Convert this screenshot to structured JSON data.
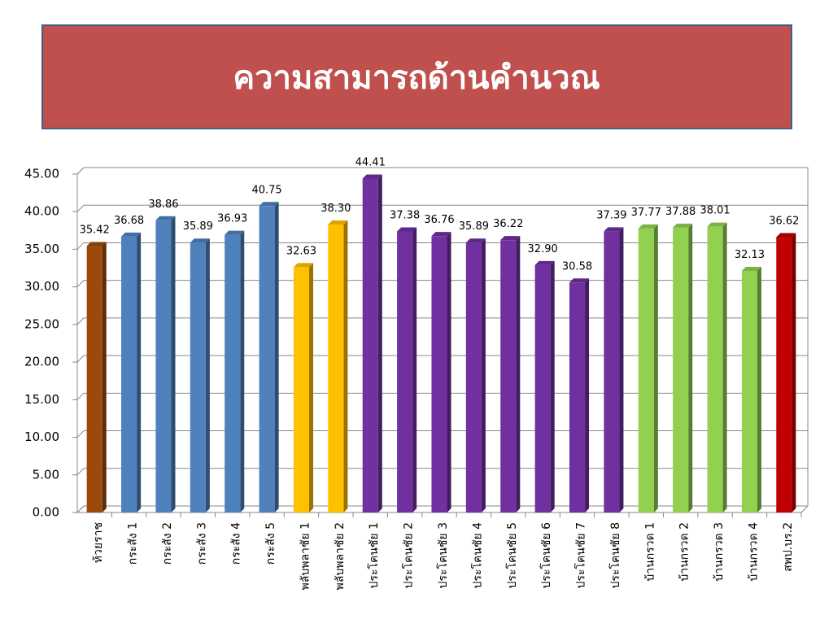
{
  "chart_data": {
    "type": "bar",
    "title": "ความสามารถด้านคำนวณ",
    "categories": [
      "ห้วยราช",
      "กระสัง 1",
      "กระสัง 2",
      "กระสัง 3",
      "กระสัง 4",
      "กระสัง 5",
      "พลับพลาชัย 1",
      "พลับพลาชัย 2",
      "ประโคนชัย 1",
      "ประโคนชัย 2",
      "ประโคนชัย 3",
      "ประโคนชัย 4",
      "ประโคนชัย 5",
      "ประโคนชัย 6",
      "ประโคนชัย 7",
      "ประโคนชัย 8",
      "บ้านกรวด 1",
      "บ้านกรวด 2",
      "บ้านกรวด 3",
      "บ้านกรวด 4",
      "สพป.บร.2"
    ],
    "values": [
      35.42,
      36.68,
      38.86,
      35.89,
      36.93,
      40.75,
      32.63,
      38.3,
      44.41,
      37.38,
      36.76,
      35.89,
      36.22,
      32.9,
      30.58,
      37.39,
      37.77,
      37.88,
      38.01,
      32.13,
      36.62
    ],
    "value_labels": [
      "35.42",
      "36.68",
      "38.86",
      "35.89",
      "36.93",
      "40.75",
      "32.63",
      "38.30",
      "44.41",
      "37.38",
      "36.76",
      "35.89",
      "36.22",
      "32.90",
      "30.58",
      "37.39",
      "37.77",
      "37.88",
      "38.01",
      "32.13",
      "36.62"
    ],
    "colors": [
      "#9c4a0b",
      "#4f81bd",
      "#4f81bd",
      "#4f81bd",
      "#4f81bd",
      "#4f81bd",
      "#ffc000",
      "#ffc000",
      "#7030a0",
      "#7030a0",
      "#7030a0",
      "#7030a0",
      "#7030a0",
      "#7030a0",
      "#7030a0",
      "#7030a0",
      "#92d050",
      "#92d050",
      "#92d050",
      "#92d050",
      "#c00000"
    ],
    "ylim": [
      0,
      45
    ],
    "yticks": [
      {
        "value": 0,
        "label": "0.00"
      },
      {
        "value": 5,
        "label": "5.00"
      },
      {
        "value": 10,
        "label": "10.00"
      },
      {
        "value": 15,
        "label": "15.00"
      },
      {
        "value": 20,
        "label": "20.00"
      },
      {
        "value": 25,
        "label": "25.00"
      },
      {
        "value": 30,
        "label": "30.00"
      },
      {
        "value": 35,
        "label": "35.00"
      },
      {
        "value": 40,
        "label": "40.00"
      },
      {
        "value": 45,
        "label": "45.00"
      }
    ],
    "grid": true
  }
}
